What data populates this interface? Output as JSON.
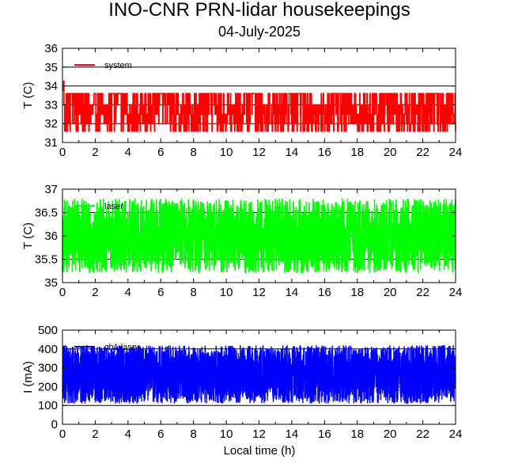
{
  "figure": {
    "title": "INO-CNR PRN-lidar housekeepings",
    "subtitle": "04-July-2025",
    "xlabel": "Local time (h)"
  },
  "chart_data": [
    {
      "type": "line",
      "series": [
        {
          "name": "system",
          "color": "#ff0000"
        }
      ],
      "ylabel": "T (C)",
      "xlim": [
        0,
        24
      ],
      "ylim": [
        31,
        36
      ],
      "xticks": [
        "0",
        "2",
        "4",
        "6",
        "8",
        "10",
        "12",
        "14",
        "16",
        "18",
        "20",
        "22",
        "24"
      ],
      "yticks": [
        "31",
        "32",
        "33",
        "34",
        "35",
        "36"
      ],
      "gridlines_y": [
        32,
        33,
        34,
        35
      ],
      "grid": "horizontal",
      "legend_position": "top-left",
      "data_description": "Temperature readings fluctuating between 31.5 and 33.6 C; initial values near 34-35 C at 0 h"
    },
    {
      "type": "line",
      "series": [
        {
          "name": "laser",
          "color": "#00ff00"
        }
      ],
      "ylabel": "T (C)",
      "xlim": [
        0,
        24
      ],
      "ylim": [
        35,
        37
      ],
      "xticks": [
        "0",
        "2",
        "4",
        "6",
        "8",
        "10",
        "12",
        "14",
        "16",
        "18",
        "20",
        "22",
        "24"
      ],
      "yticks": [
        "35",
        "35.5",
        "36",
        "36.5",
        "37"
      ],
      "gridlines_y": [
        35.5,
        36,
        36.5
      ],
      "grid": "horizontal",
      "legend_position": "top-left",
      "data_description": "Temperature readings oscillating between 35.2 and 36.8 C"
    },
    {
      "type": "line",
      "series": [
        {
          "name": "ch1 laser",
          "color": "#0000ff"
        }
      ],
      "ylabel": "I (mA)",
      "xlim": [
        0,
        24
      ],
      "ylim": [
        0,
        500
      ],
      "xticks": [
        "0",
        "2",
        "4",
        "6",
        "8",
        "10",
        "12",
        "14",
        "16",
        "18",
        "20",
        "22",
        "24"
      ],
      "yticks": [
        "0",
        "100",
        "200",
        "300",
        "400",
        "500"
      ],
      "gridlines_y": [
        100,
        200,
        300,
        400
      ],
      "grid": "horizontal",
      "legend_position": "top-left",
      "data_description": "Current readings filling the band between about 110 and 420 mA"
    }
  ]
}
